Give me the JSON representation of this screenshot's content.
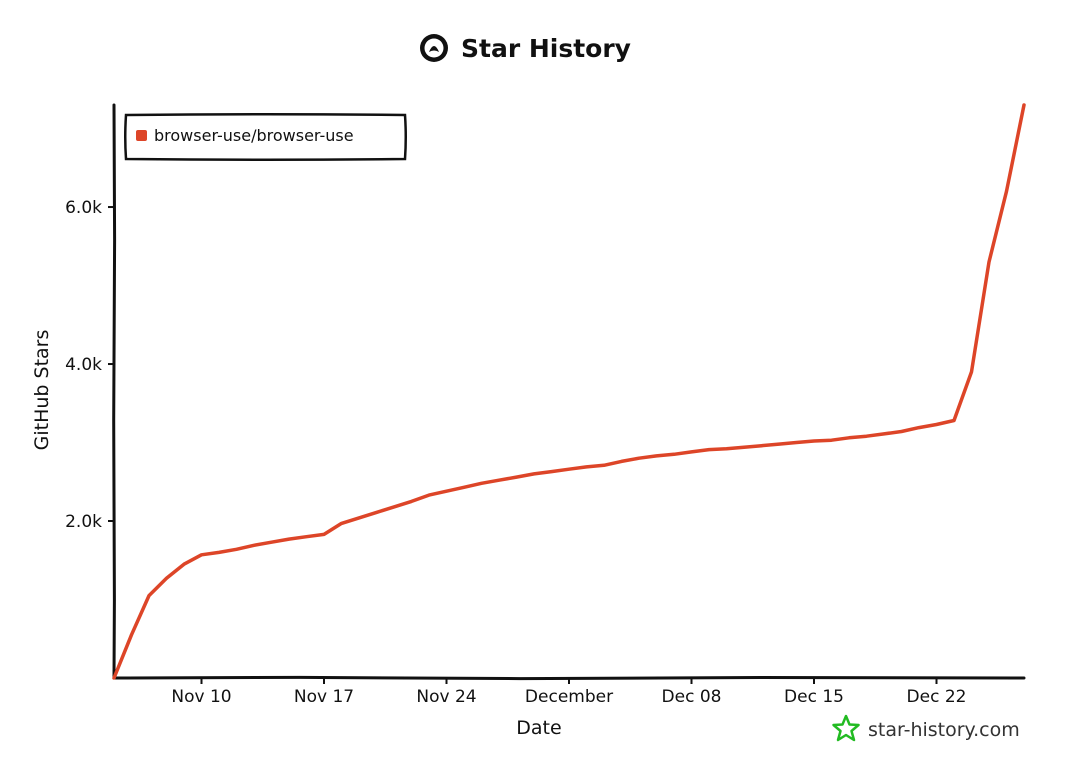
{
  "chart_data": {
    "type": "line",
    "title": "Star History",
    "xlabel": "Date",
    "ylabel": "GitHub Stars",
    "x_tick_labels": [
      "Nov 10",
      "Nov 17",
      "Nov 24",
      "December",
      "Dec 08",
      "Dec 15",
      "Dec 22"
    ],
    "x_ticks": [
      "2024-11-10",
      "2024-11-17",
      "2024-11-24",
      "2024-12-01",
      "2024-12-08",
      "2024-12-15",
      "2024-12-22"
    ],
    "y_tick_labels": [
      "2.0k",
      "4.0k",
      "6.0k"
    ],
    "y_ticks": [
      2000,
      4000,
      6000
    ],
    "xlim": [
      "2024-11-05",
      "2024-12-27"
    ],
    "ylim": [
      0,
      7300
    ],
    "grid": false,
    "legend_position": "top-left",
    "series": [
      {
        "name": "browser-use/browser-use",
        "color": "#dd4528",
        "x": [
          "2024-11-05",
          "2024-11-06",
          "2024-11-07",
          "2024-11-08",
          "2024-11-09",
          "2024-11-10",
          "2024-11-11",
          "2024-11-12",
          "2024-11-13",
          "2024-11-14",
          "2024-11-15",
          "2024-11-16",
          "2024-11-17",
          "2024-11-18",
          "2024-11-19",
          "2024-11-20",
          "2024-11-21",
          "2024-11-22",
          "2024-11-23",
          "2024-11-24",
          "2024-11-25",
          "2024-11-26",
          "2024-11-27",
          "2024-11-28",
          "2024-11-29",
          "2024-11-30",
          "2024-12-01",
          "2024-12-02",
          "2024-12-03",
          "2024-12-04",
          "2024-12-05",
          "2024-12-06",
          "2024-12-07",
          "2024-12-08",
          "2024-12-09",
          "2024-12-10",
          "2024-12-11",
          "2024-12-12",
          "2024-12-13",
          "2024-12-14",
          "2024-12-15",
          "2024-12-16",
          "2024-12-17",
          "2024-12-18",
          "2024-12-19",
          "2024-12-20",
          "2024-12-21",
          "2024-12-22",
          "2024-12-23",
          "2024-12-24",
          "2024-12-25",
          "2024-12-26",
          "2024-12-27"
        ],
        "values": [
          0,
          550,
          1050,
          1270,
          1450,
          1570,
          1600,
          1640,
          1690,
          1730,
          1770,
          1800,
          1830,
          1970,
          2040,
          2110,
          2180,
          2250,
          2330,
          2380,
          2430,
          2480,
          2520,
          2560,
          2600,
          2630,
          2660,
          2690,
          2710,
          2760,
          2800,
          2830,
          2850,
          2880,
          2910,
          2920,
          2940,
          2960,
          2980,
          3000,
          3020,
          3030,
          3060,
          3080,
          3110,
          3140,
          3190,
          3230,
          3280,
          3900,
          5300,
          6200,
          7300
        ]
      }
    ]
  },
  "watermark": {
    "text": "star-history.com",
    "icon": "star-history-logo-icon",
    "color": "#22bb22"
  }
}
